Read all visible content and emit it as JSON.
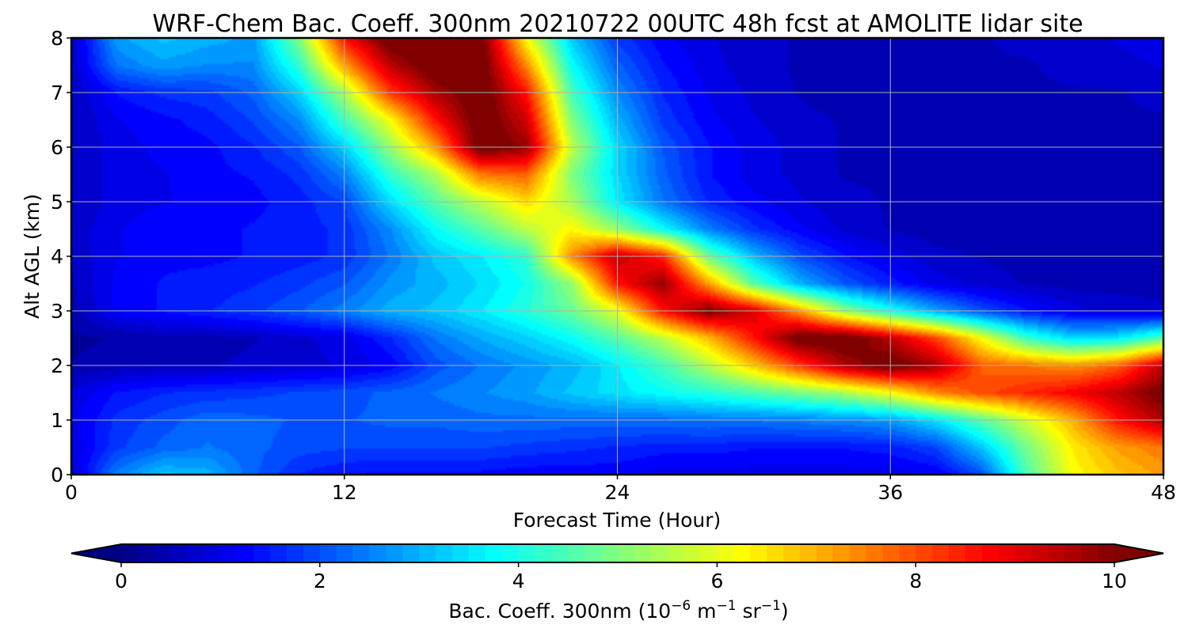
{
  "chart_data": {
    "type": "heatmap",
    "title": "WRF-Chem Bac. Coeff. 300nm  20210722 00UTC 48h fcst at AMOLITE lidar site",
    "xlabel": "Forecast Time (Hour)",
    "ylabel": "Alt AGL (km)",
    "x_ticks": [
      "0",
      "12",
      "24",
      "36",
      "48"
    ],
    "y_ticks": [
      "0",
      "1",
      "2",
      "3",
      "4",
      "5",
      "6",
      "7",
      "8"
    ],
    "xlim": [
      0,
      48
    ],
    "ylim": [
      0,
      8
    ],
    "grid": true,
    "colormap": "jet",
    "colorbar": {
      "label": "Bac. Coeff. 300nm  (10",
      "label_exp1": "−6",
      "label_mid": " m",
      "label_exp2": "−1",
      "label_mid2": " sr",
      "label_exp3": "−1",
      "label_end": ")",
      "ticks": [
        "0",
        "2",
        "4",
        "6",
        "8",
        "10"
      ],
      "range": [
        0,
        10
      ],
      "extend": "both",
      "orientation": "horizontal",
      "position": "bottom"
    },
    "x": [
      0,
      2,
      4,
      6,
      8,
      10,
      12,
      14,
      16,
      18,
      20,
      22,
      24,
      26,
      28,
      30,
      32,
      34,
      36,
      38,
      40,
      42,
      44,
      46,
      48
    ],
    "y": [
      0,
      0.5,
      1,
      1.5,
      2,
      2.5,
      3,
      3.5,
      4,
      4.5,
      5,
      5.5,
      6,
      6.5,
      7,
      7.5,
      8
    ],
    "z": [
      [
        0.8,
        2.5,
        3.2,
        3.0,
        2.2,
        1.6,
        1.4,
        1.3,
        1.3,
        1.3,
        1.2,
        1.2,
        1.2,
        1.0,
        1.0,
        1.0,
        1.0,
        1.0,
        1.0,
        1.1,
        2.0,
        4.5,
        6.2,
        6.8,
        7.2
      ],
      [
        0.9,
        1.8,
        2.2,
        2.4,
        2.2,
        2.0,
        1.9,
        1.9,
        1.9,
        1.9,
        1.8,
        1.7,
        1.6,
        1.5,
        1.5,
        1.4,
        1.4,
        1.4,
        1.5,
        1.9,
        3.2,
        4.9,
        6.4,
        7.2,
        7.6
      ],
      [
        1.0,
        1.7,
        2.0,
        2.3,
        2.2,
        2.1,
        2.1,
        2.2,
        2.2,
        2.3,
        2.3,
        2.3,
        2.3,
        2.3,
        2.4,
        2.4,
        2.5,
        2.6,
        2.8,
        3.5,
        4.6,
        5.8,
        7.0,
        8.6,
        9.6
      ],
      [
        0.9,
        1.4,
        1.6,
        1.7,
        1.8,
        1.9,
        2.0,
        2.2,
        2.4,
        2.6,
        2.8,
        3.2,
        3.5,
        3.8,
        4.1,
        4.5,
        4.9,
        5.4,
        6.2,
        7.4,
        8.0,
        8.4,
        8.8,
        9.4,
        10.2
      ],
      [
        0.4,
        0.5,
        0.6,
        0.6,
        0.7,
        0.8,
        0.9,
        1.2,
        2.0,
        2.4,
        2.7,
        3.0,
        3.6,
        4.4,
        5.5,
        6.8,
        8.2,
        9.6,
        10.3,
        9.6,
        7.8,
        7.6,
        7.3,
        7.8,
        9.4
      ],
      [
        0.3,
        0.4,
        0.5,
        0.5,
        0.6,
        0.8,
        1.0,
        1.6,
        2.4,
        2.9,
        3.3,
        3.8,
        4.6,
        5.6,
        6.9,
        8.6,
        10.3,
        10.4,
        9.4,
        8.1,
        6.2,
        4.3,
        3.4,
        3.6,
        4.6
      ],
      [
        0.5,
        1.2,
        1.4,
        1.6,
        1.8,
        2.1,
        2.5,
        3.0,
        3.2,
        3.6,
        4.1,
        4.8,
        6.0,
        8.6,
        10.1,
        9.1,
        7.2,
        5.2,
        4.0,
        2.9,
        2.0,
        1.4,
        1.0,
        0.8,
        0.7
      ],
      [
        0.6,
        1.2,
        1.4,
        1.5,
        1.6,
        1.8,
        2.1,
        2.7,
        3.0,
        3.4,
        3.9,
        5.2,
        8.6,
        9.8,
        7.2,
        4.6,
        3.0,
        2.1,
        1.5,
        1.0,
        0.8,
        0.6,
        0.5,
        0.5,
        0.5
      ],
      [
        0.7,
        1.1,
        1.3,
        1.3,
        1.4,
        1.5,
        1.7,
        2.4,
        3.2,
        3.6,
        4.2,
        7.4,
        9.4,
        8.4,
        4.8,
        3.1,
        2.0,
        1.4,
        1.0,
        0.7,
        0.6,
        0.5,
        0.5,
        0.5,
        0.5
      ],
      [
        0.7,
        1.1,
        1.3,
        1.3,
        1.4,
        1.5,
        1.7,
        2.6,
        3.8,
        4.6,
        5.6,
        6.3,
        5.2,
        3.8,
        2.5,
        1.7,
        1.2,
        0.8,
        0.6,
        0.5,
        0.5,
        0.5,
        0.5,
        0.5,
        0.5
      ],
      [
        0.6,
        1.0,
        1.1,
        1.2,
        1.3,
        1.5,
        1.9,
        3.4,
        4.6,
        5.6,
        6.6,
        5.4,
        3.6,
        2.4,
        1.6,
        1.2,
        0.9,
        0.7,
        0.6,
        0.5,
        0.5,
        0.5,
        0.5,
        0.5,
        0.5
      ],
      [
        0.6,
        1.0,
        1.1,
        1.3,
        1.4,
        1.7,
        2.5,
        4.2,
        5.4,
        7.6,
        7.8,
        5.0,
        3.4,
        2.2,
        1.4,
        1.0,
        0.8,
        0.6,
        0.6,
        0.5,
        0.5,
        0.5,
        0.5,
        0.5,
        0.5
      ],
      [
        0.6,
        1.0,
        1.2,
        1.3,
        1.6,
        2.1,
        3.3,
        5.2,
        7.2,
        10.4,
        9.8,
        5.6,
        3.4,
        2.1,
        1.4,
        1.0,
        0.8,
        0.6,
        0.5,
        0.5,
        0.5,
        0.5,
        0.5,
        0.5,
        0.6
      ],
      [
        0.6,
        1.1,
        1.3,
        1.5,
        1.9,
        2.6,
        4.4,
        6.2,
        8.6,
        10.4,
        9.2,
        5.0,
        3.0,
        1.8,
        1.2,
        0.9,
        0.7,
        0.6,
        0.5,
        0.5,
        0.5,
        0.5,
        0.5,
        0.6,
        0.6
      ],
      [
        0.6,
        1.4,
        1.7,
        1.8,
        2.2,
        3.3,
        5.4,
        8.2,
        9.6,
        10.4,
        8.6,
        4.4,
        2.6,
        1.6,
        1.1,
        0.8,
        0.6,
        0.5,
        0.5,
        0.5,
        0.5,
        0.6,
        0.6,
        0.6,
        0.7
      ],
      [
        0.7,
        2.4,
        2.8,
        2.6,
        2.6,
        4.2,
        7.2,
        9.4,
        10.4,
        10.4,
        7.4,
        3.8,
        2.2,
        1.4,
        1.0,
        0.7,
        0.6,
        0.5,
        0.5,
        0.5,
        0.6,
        0.6,
        0.7,
        0.8,
        0.9
      ],
      [
        0.7,
        2.8,
        3.2,
        3.0,
        2.8,
        5.0,
        8.6,
        10.4,
        10.2,
        10.2,
        6.2,
        3.2,
        1.8,
        1.2,
        0.9,
        0.7,
        0.6,
        0.5,
        0.5,
        0.5,
        0.6,
        0.7,
        0.8,
        0.9,
        1.0
      ]
    ]
  }
}
